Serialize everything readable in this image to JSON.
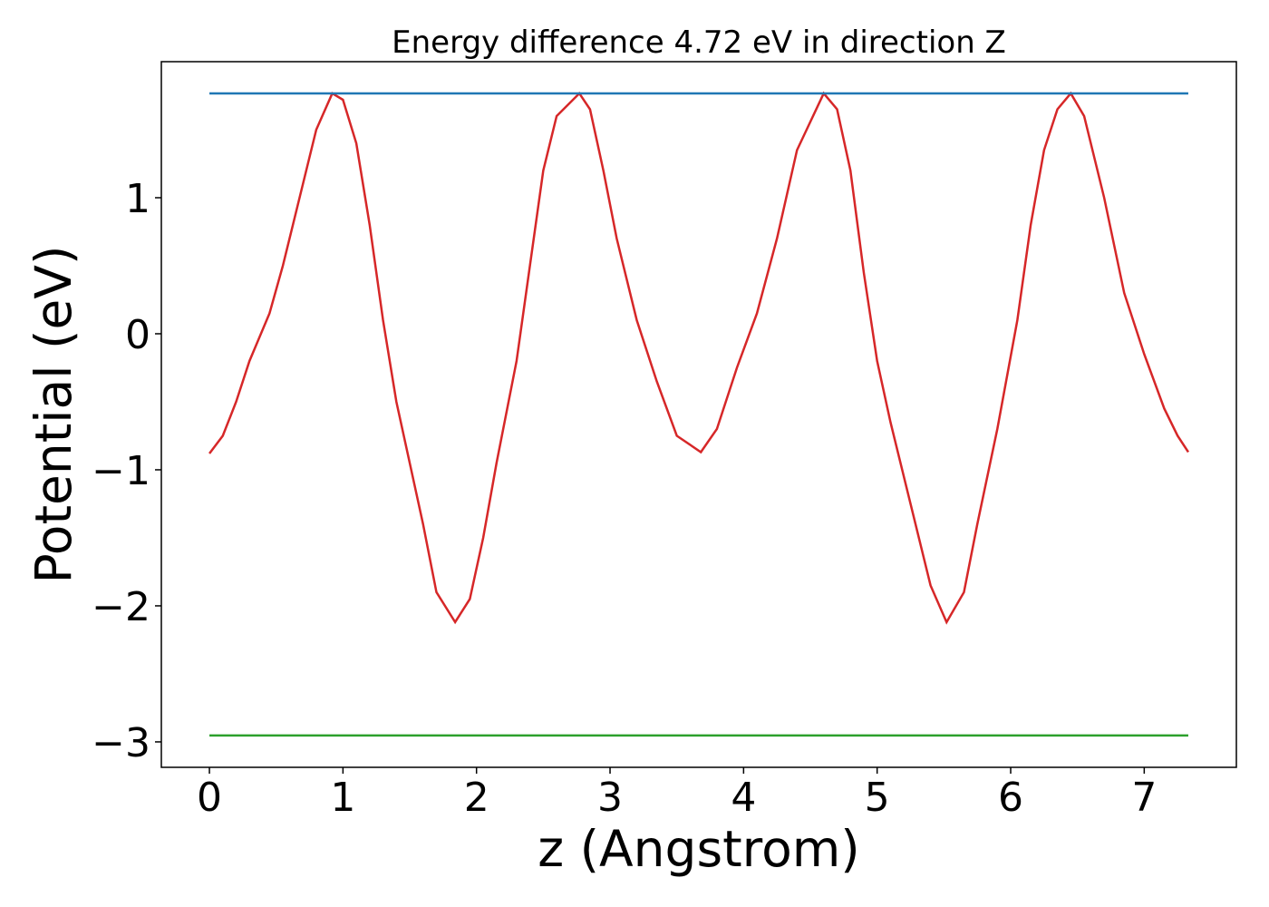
{
  "chart_data": {
    "type": "line",
    "title": "Energy difference 4.72 eV in direction Z",
    "xlabel": "z (Angstrom)",
    "ylabel": "Potential (eV)",
    "xlim": [
      -0.36,
      7.69
    ],
    "ylim": [
      -3.187,
      2.0
    ],
    "xticks": [
      0,
      1,
      2,
      3,
      4,
      5,
      6,
      7
    ],
    "yticks": [
      {
        "value": -3,
        "label": "−3"
      },
      {
        "value": -2,
        "label": "−2"
      },
      {
        "value": -1,
        "label": "−1"
      },
      0,
      1
    ],
    "series": [
      {
        "color": "#d62728",
        "x": [
          0,
          0.1,
          0.2,
          0.3,
          0.45,
          0.55,
          0.7,
          0.8,
          0.92,
          1.0,
          1.1,
          1.2,
          1.3,
          1.4,
          1.5,
          1.6,
          1.7,
          1.84,
          1.95,
          2.05,
          2.15,
          2.3,
          2.4,
          2.5,
          2.6,
          2.77,
          2.85,
          2.95,
          3.05,
          3.2,
          3.35,
          3.5,
          3.68,
          3.8,
          3.95,
          4.1,
          4.25,
          4.4,
          4.6,
          4.7,
          4.8,
          4.9,
          5.0,
          5.1,
          5.25,
          5.4,
          5.52,
          5.65,
          5.75,
          5.9,
          6.05,
          6.15,
          6.25,
          6.35,
          6.45,
          6.55,
          6.7,
          6.85,
          7.0,
          7.15,
          7.25,
          7.33
        ],
        "values": [
          -0.88,
          -0.75,
          -0.5,
          -0.2,
          0.15,
          0.5,
          1.1,
          1.5,
          1.767,
          1.72,
          1.4,
          0.8,
          0.1,
          -0.5,
          -0.95,
          -1.4,
          -1.9,
          -2.12,
          -1.95,
          -1.5,
          -0.95,
          -0.2,
          0.5,
          1.2,
          1.6,
          1.767,
          1.65,
          1.2,
          0.7,
          0.1,
          -0.35,
          -0.75,
          -0.87,
          -0.7,
          -0.25,
          0.15,
          0.7,
          1.35,
          1.767,
          1.65,
          1.2,
          0.45,
          -0.2,
          -0.65,
          -1.25,
          -1.85,
          -2.12,
          -1.9,
          -1.4,
          -0.7,
          0.1,
          0.8,
          1.35,
          1.65,
          1.767,
          1.6,
          1.0,
          0.3,
          -0.15,
          -0.55,
          -0.75,
          -0.87
        ]
      },
      {
        "color": "#1f77b4",
        "x": [
          0,
          7.33
        ],
        "values": [
          1.767,
          1.767
        ]
      },
      {
        "color": "#2ca02c",
        "x": [
          0,
          7.33
        ],
        "values": [
          -2.953,
          -2.953
        ]
      }
    ]
  }
}
